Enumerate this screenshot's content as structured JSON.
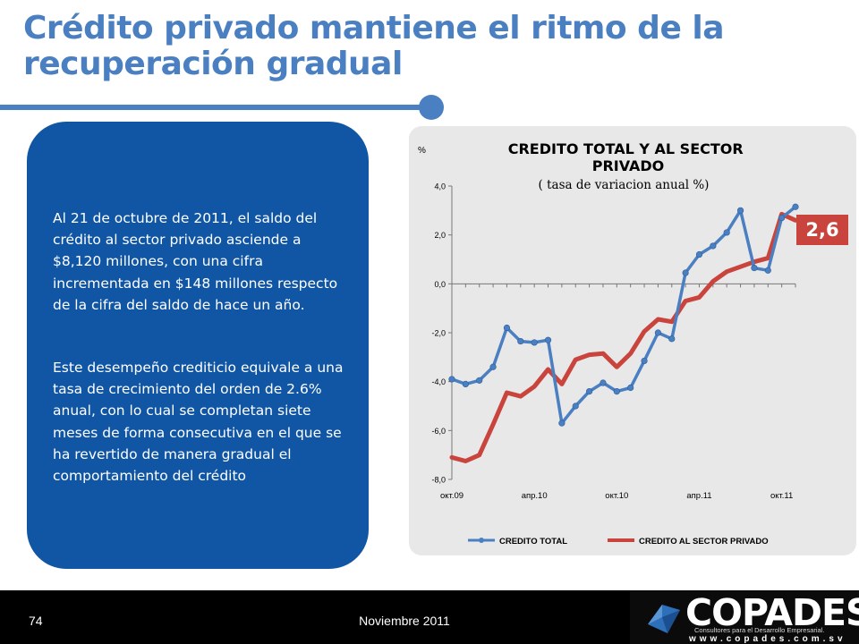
{
  "slide": {
    "title": "Crédito privado mantiene el ritmo de la recuperación gradual",
    "paragraph_1": "Al 21 de octubre de 2011, el saldo del crédito al sector privado asciende a $8,120 millones, con una cifra incrementada en $148 millones respecto de la cifra del saldo de hace un año.",
    "paragraph_2": "Este desempeño crediticio equivale a una tasa de crecimiento del orden de 2.6% anual, con lo cual se completan siete meses de forma consecutiva en el que se ha revertido de manera gradual el comportamiento del crédito",
    "callout": "2,6",
    "page_number": "74",
    "date": "Noviembre 2011"
  },
  "logo": {
    "word": "COPADES",
    "tagline": "Consultores para el Desarrollo Empresarial.",
    "website": "www.copades.com.sv"
  },
  "colors": {
    "title_blue": "#4a7fc1",
    "box_blue": "#1056a5",
    "series_total": "#4a7fc1",
    "series_privado": "#c9443c",
    "chart_bg": "#e8e8e8",
    "footer_bg": "#000000"
  },
  "chart_data": {
    "type": "line",
    "title": "CREDITO TOTAL Y AL SECTOR PRIVADO",
    "subtitle": "( tasa de variacion anual %)",
    "ylabel": "%",
    "ylim": [
      -8,
      4
    ],
    "y_ticks": [
      "4,0",
      "2,0",
      "0,0",
      "-2,0",
      "-4,0",
      "-6,0",
      "-8,0"
    ],
    "x_tick_labels": [
      "окт.09",
      "апр.10",
      "окт.10",
      "апр.11",
      "окт.11"
    ],
    "x_tick_positions": [
      0,
      6,
      12,
      18,
      24
    ],
    "x": [
      0,
      1,
      2,
      3,
      4,
      5,
      6,
      7,
      8,
      9,
      10,
      11,
      12,
      13,
      14,
      15,
      16,
      17,
      18,
      19,
      20,
      21,
      22,
      23,
      24,
      25
    ],
    "legend_position": "bottom",
    "grid": false,
    "series": [
      {
        "name": "CREDITO TOTAL",
        "color": "#4a7fc1",
        "marker": true,
        "values": [
          -3.9,
          -4.1,
          -3.95,
          -3.4,
          -1.8,
          -2.35,
          -2.4,
          -2.3,
          -5.7,
          -5.0,
          -4.4,
          -4.05,
          -4.4,
          -4.25,
          -3.15,
          -2.0,
          -2.25,
          0.45,
          1.2,
          1.55,
          2.1,
          3.0,
          0.65,
          0.55,
          2.7,
          3.15
        ]
      },
      {
        "name": "CREDITO AL SECTOR PRIVADO",
        "color": "#c9443c",
        "marker": false,
        "values": [
          -7.1,
          -7.25,
          -7.0,
          -5.75,
          -4.45,
          -4.6,
          -4.2,
          -3.5,
          -4.1,
          -3.1,
          -2.9,
          -2.85,
          -3.4,
          -2.85,
          -1.95,
          -1.45,
          -1.55,
          -0.7,
          -0.55,
          0.1,
          0.5,
          0.7,
          0.9,
          1.05,
          2.85,
          2.6
        ]
      }
    ]
  }
}
